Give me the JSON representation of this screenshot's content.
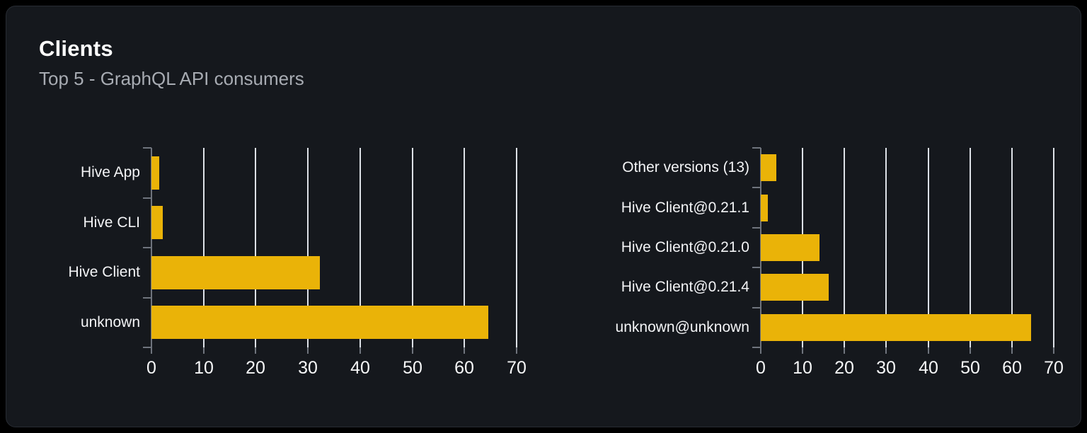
{
  "card": {
    "title": "Clients",
    "subtitle": "Top 5 - GraphQL API consumers"
  },
  "colors": {
    "page_background": "#000000",
    "card_background": "#15181d",
    "card_border": "#282c33",
    "bar": "#eab308",
    "grid_line": "#dde1e7",
    "axis": "#6f747d",
    "title_text": "#ffffff",
    "subtitle_text": "#a7abb2",
    "label_text": "#f3f4f6"
  },
  "chart_data": [
    {
      "type": "bar",
      "orientation": "horizontal",
      "title": "",
      "categories": [
        "Hive App",
        "Hive CLI",
        "Hive Client",
        "unknown"
      ],
      "values": [
        1.5,
        2.2,
        32.3,
        64.6
      ],
      "xlim": [
        0,
        70
      ],
      "xticks": [
        0,
        10,
        20,
        30,
        40,
        50,
        60,
        70
      ],
      "grid": true,
      "legend": false,
      "bar_color": "#eab308"
    },
    {
      "type": "bar",
      "orientation": "horizontal",
      "title": "",
      "categories": [
        "Other versions (13)",
        "Hive Client@0.21.1",
        "Hive Client@0.21.0",
        "Hive Client@0.21.4",
        "unknown@unknown"
      ],
      "values": [
        3.8,
        1.7,
        14.0,
        16.3,
        64.6
      ],
      "xlim": [
        0,
        70
      ],
      "xticks": [
        0,
        10,
        20,
        30,
        40,
        50,
        60,
        70
      ],
      "grid": true,
      "legend": false,
      "bar_color": "#eab308"
    }
  ]
}
